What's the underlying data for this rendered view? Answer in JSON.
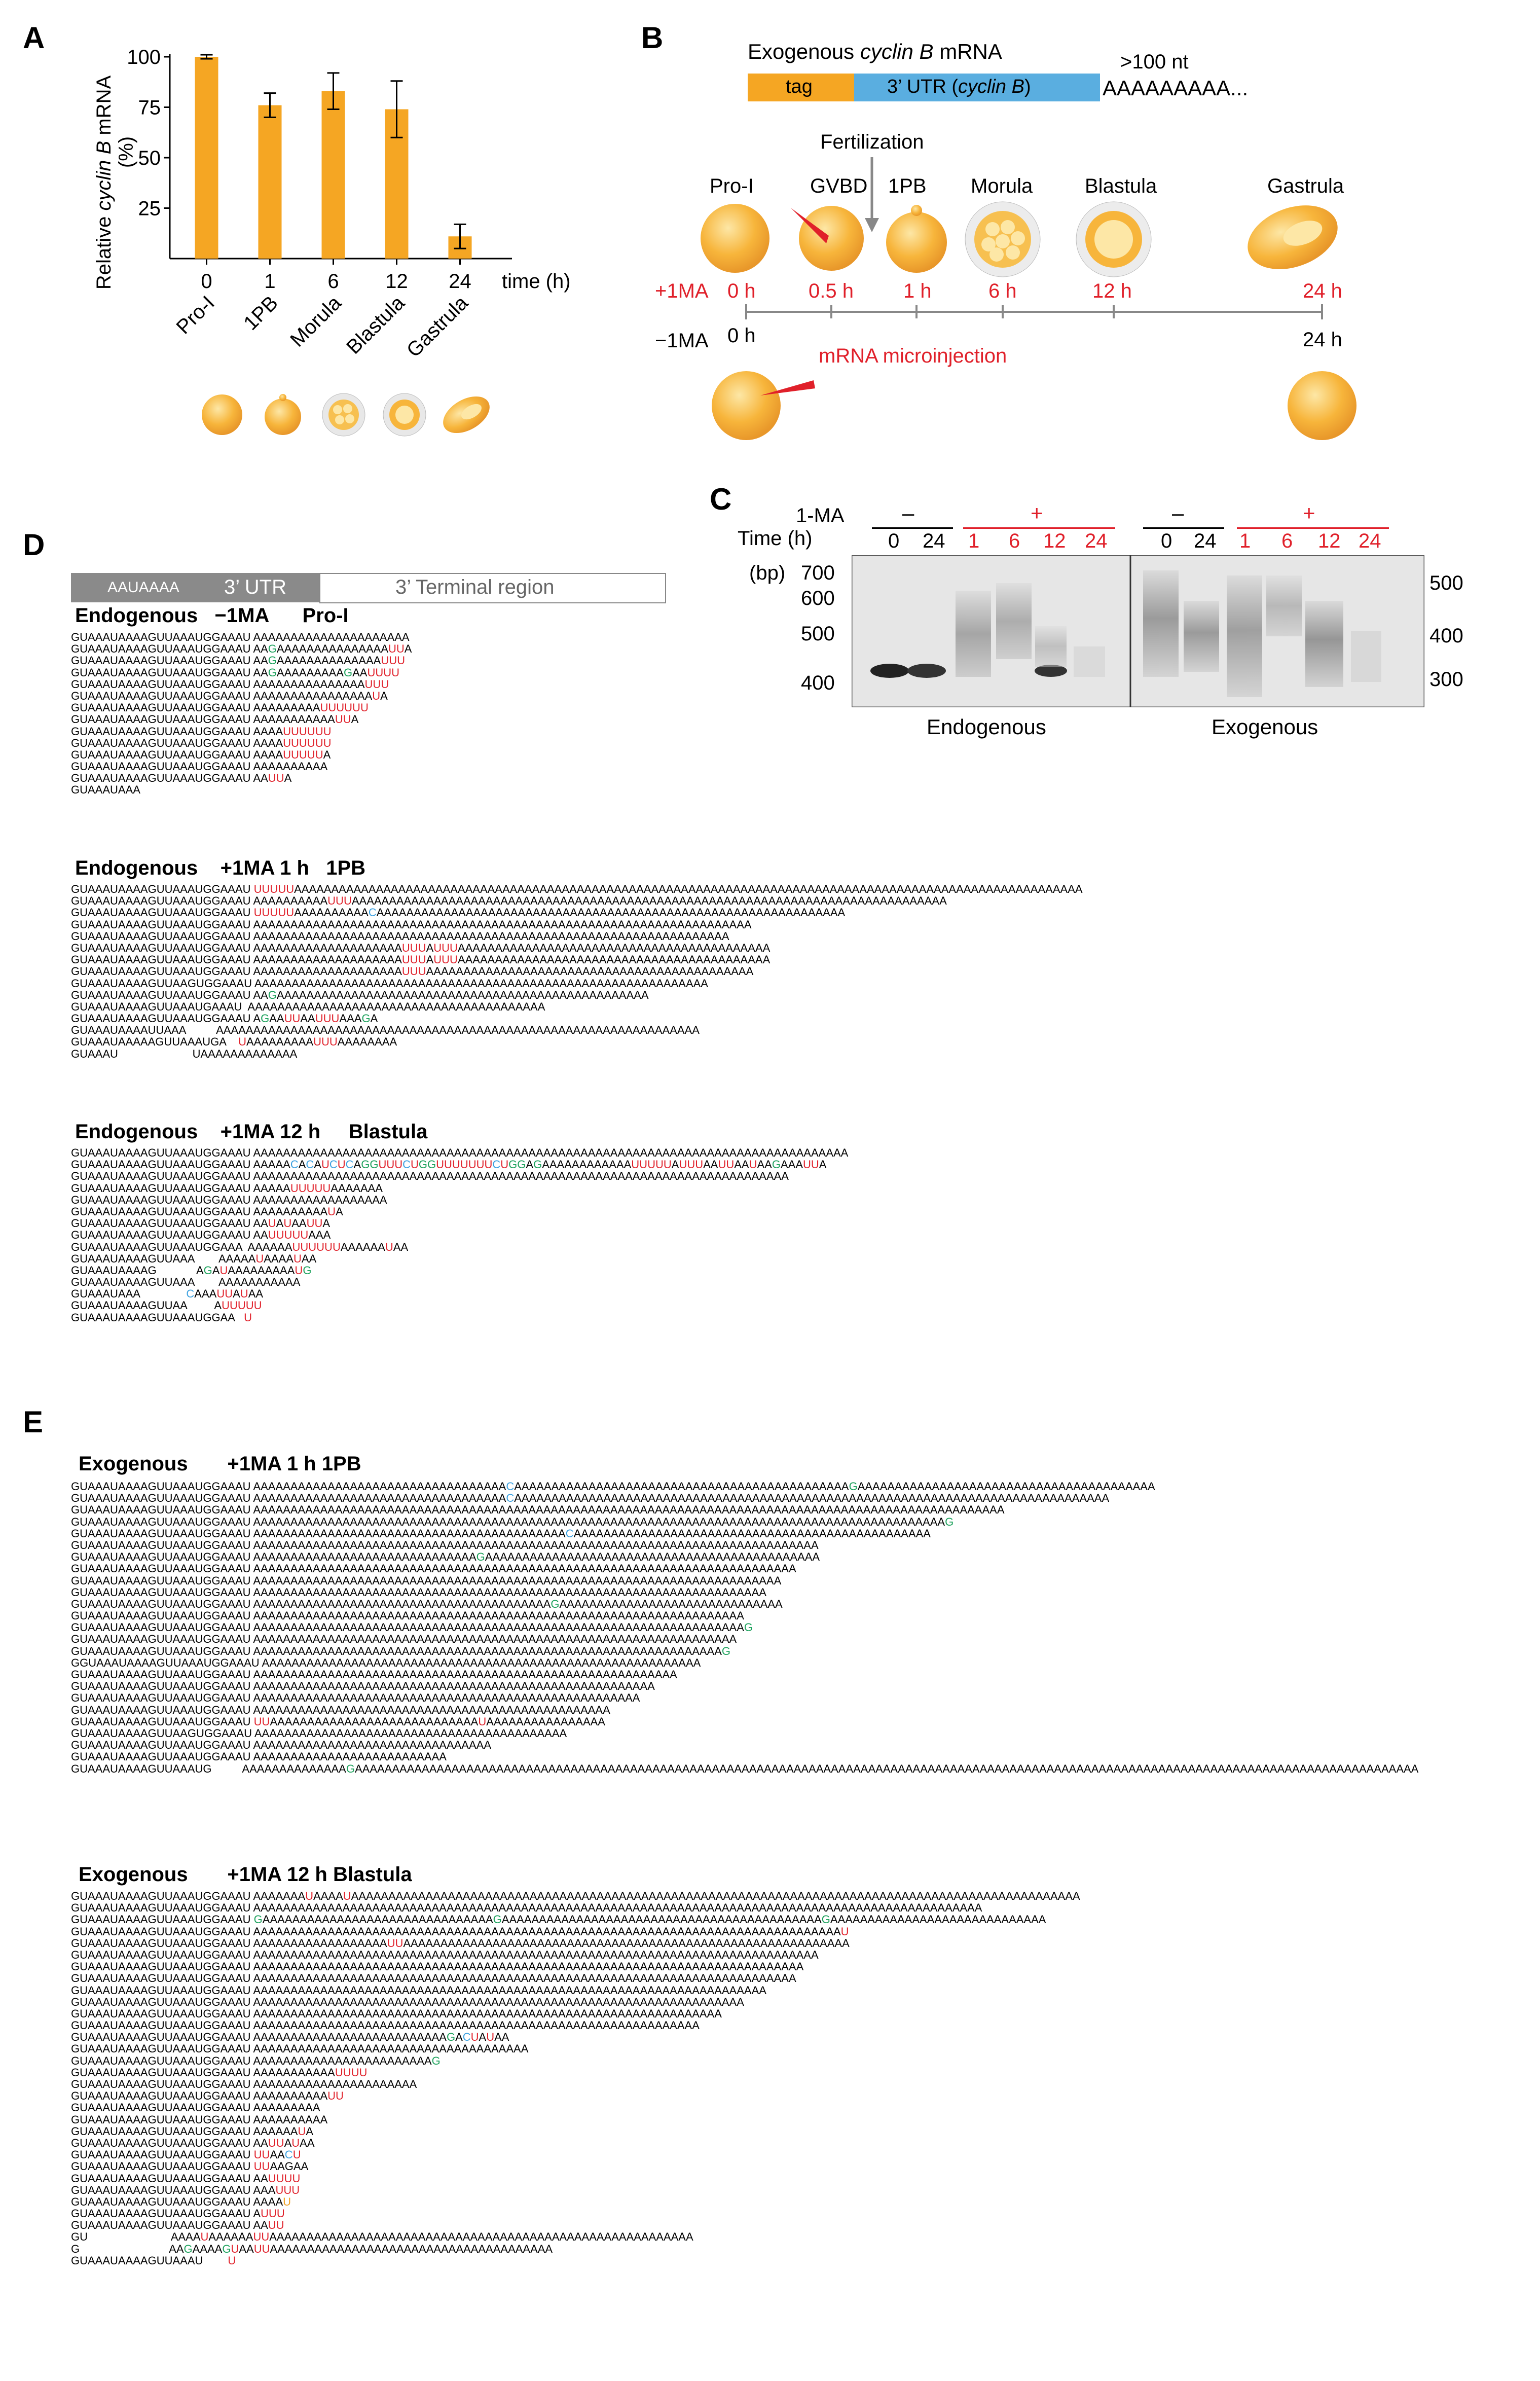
{
  "panels": {
    "A": "A",
    "B": "B",
    "C": "C",
    "D": "D",
    "E": "E"
  },
  "colors": {
    "bar": "#f5a623",
    "utr": "#5aaee0",
    "tag": "#f5a623",
    "red": "#e0202a",
    "green": "#1aa05a",
    "blue": "#3aa0e0",
    "gel_bg": "#e6e6e6",
    "band": "#222222"
  },
  "chart_data": {
    "type": "bar",
    "title": "",
    "ylabel": "Relative cyclin B mRNA (%)",
    "ylabel_parts": [
      "Relative ",
      "cyclin B",
      " mRNA"
    ],
    "ylabel_unit": "(%)",
    "xlabel": "time (h)",
    "categories": [
      "0",
      "1",
      "6",
      "12",
      "24"
    ],
    "stage_labels": [
      "Pro-I",
      "1PB",
      "Morula",
      "Blastula",
      "Gastrula"
    ],
    "values": [
      100,
      76,
      83,
      74,
      11
    ],
    "errors": [
      1,
      6,
      9,
      14,
      6
    ],
    "yticks": [
      "25",
      "50",
      "75",
      "100"
    ],
    "ytick_values": [
      25,
      50,
      75,
      100
    ],
    "ylim": [
      0,
      100
    ]
  },
  "panelB": {
    "title_prefix": "Exogenous ",
    "title_italic": "cyclin B",
    "title_suffix": " mRNA",
    "tag": "tag",
    "utr_prefix": "3’  UTR (",
    "utr_italic": "cyclin B",
    "utr_suffix": ")",
    "polya": "AAAAAAAAA...",
    "length": ">100 nt",
    "fertilization": "Fertilization",
    "stages": [
      "Pro-I",
      "GVBD",
      "1PB",
      "Morula",
      "Blastula",
      "Gastrula"
    ],
    "plus_label": "+1MA",
    "plus_times": [
      "0 h",
      "0.5 h",
      "1 h",
      "6 h",
      "12 h",
      "24 h"
    ],
    "minus_label": "−1MA",
    "minus_start": "0 h",
    "minus_end": "24 h",
    "injection": "mRNA microinjection"
  },
  "panelC": {
    "row_1ma": "1-MA",
    "row_time": "Time  (h)",
    "bp_unit": "(bp)",
    "left_markers": [
      "700",
      "600",
      "500",
      "400"
    ],
    "right_markers": [
      "500",
      "400",
      "300"
    ],
    "minus": "–",
    "plus": "+",
    "lanes_minus": [
      "0",
      "24"
    ],
    "lanes_plus": [
      "1",
      "6",
      "12",
      "24"
    ],
    "caption_left": "Endogenous",
    "caption_right": "Exogenous"
  },
  "panelD": {
    "legend_box1": "AAUAAAA",
    "legend_utr": "3’ UTR",
    "legend_terminal": "3’ Terminal region",
    "groups": [
      {
        "title": "Endogenous   −1MA      Pro-I",
        "lines": [
          "GUAAAUAAAAGUUAAAUGGAAAU AAAAAAAAAAAAAAAAAAAAA",
          "GUAAAUAAAAGUUAAAUGGAAAU AA{g:G}AAAAAAAAAAAAAAA{r:UU}A",
          "GUAAAUAAAAGUUAAAUGGAAAU AA{g:G}AAAAAAAAAAAAAA{r:UUU}",
          "GUAAAUAAAAGUUAAAUGGAAAU AA{g:G}AAAAAAAAA{g:G}AA{r:UUUU}",
          "GUAAAUAAAAGUUAAAUGGAAAU AAAAAAAAAAAAAAA{r:UUU}",
          "GUAAAUAAAAGUUAAAUGGAAAU AAAAAAAAAAAAAAAA{r:U}A",
          "GUAAAUAAAAGUUAAAUGGAAAU AAAAAAAAA{r:UUUUUU}",
          "GUAAAUAAAAGUUAAAUGGAAAU AAAAAAAAAAA{r:UU}A",
          "GUAAAUAAAAGUUAAAUGGAAAU AAAA{r:UUUUUU}",
          "GUAAAUAAAAGUUAAAUGGAAAU AAAA{r:UUUUUU}",
          "GUAAAUAAAAGUUAAAUGGAAAU AAAA{r:UUUUU}A",
          "GUAAAUAAAAGUUAAAUGGAAAU AAAAAAAAAA",
          "GUAAAUAAAAGUUAAAUGGAAAU AA{r:UU}A",
          "GUAAAUAAA"
        ]
      },
      {
        "title": "Endogenous    +1MA 1 h   1PB",
        "lines": [
          "GUAAAUAAAAGUUAAAUGGAAAU {r:UUUUU}AAAAAAAAAAAAAAAAAAAAAAAAAAAAAAAAAAAAAAAAAAAAAAAAAAAAAAAAAAAAAAAAAAAAAAAAAAAAAAAAAAAAAAAAAAAAAAAAAAAAAAAAAA",
          "GUAAAUAAAAGUUAAAUGGAAAU AAAAAAAAAA{r:UUU}AAAAAAAAAAAAAAAAAAAAAAAAAAAAAAAAAAAAAAAAAAAAAAAAAAAAAAAAAAAAAAAAAAAAAAAAAAAAAAAA",
          "GUAAAUAAAAGUUAAAUGGAAAU {r:UUUUU}AAAAAAAAAA{b:C}AAAAAAAAAAAAAAAAAAAAAAAAAAAAAAAAAAAAAAAAAAAAAAAAAAAAAAAAAAAAAAA",
          "GUAAAUAAAAGUUAAAUGGAAAU AAAAAAAAAAAAAAAAAAAAAAAAAAAAAAAAAAAAAAAAAAAAAAAAAAAAAAAAAAAAAAAAAAA",
          "GUAAAUAAAAGUUAAAUGGAAAU AAAAAAAAAAAAAAAAAAAAAAAAAAAAAAAAAAAAAAAAAAAAAAAAAAAAAAAAAAAAAAAA",
          "GUAAAUAAAAGUUAAAUGGAAAU AAAAAAAAAAAAAAAAAAAA{r:UUU}A{r:UUU}AAAAAAAAAAAAAAAAAAAAAAAAAAAAAAAAAAAAAAAAAA",
          "GUAAAUAAAAGUUAAAUGGAAAU AAAAAAAAAAAAAAAAAAAA{r:UUU}A{r:UUU}AAAAAAAAAAAAAAAAAAAAAAAAAAAAAAAAAAAAAAAAAA",
          "GUAAAUAAAAGUUAAAUGGAAAU AAAAAAAAAAAAAAAAAAAA{r:UUU}AAAAAAAAAAAAAAAAAAAAAAAAAAAAAAAAAAAAAAAAAAAA",
          "GUAAAUAAAAGUUAAGUGGAAAU AAAAAAAAAAAAAAAAAAAAAAAAAAAAAAAAAAAAAAAAAAAAAAAAAAAAAAAAAAAAA",
          "GUAAAUAAAAGUUAAAUGGAAAU AA{g:G}AAAAAAAAAAAAAAAAAAAAAAAAAAAAAAAAAAAAAAAAAAAAAAAAAA",
          "GUAAAUAAAAGUUAAAUGAAAU  AAAAAAAAAAAAAAAAAAAAAAAAAAAAAAAAAAAAAAAA",
          "GUAAAUAAAAGUUAAAUGGAAAU A{g:G}AA{r:UU}AA{r:UUU}AAA{g:G}A",
          "GUAAAUAAAAUUAAA          AAAAAAAAAAAAAAAAAAAAAAAAAAAAAAAAAAAAAAAAAAAAAAAAAAAAAAAAAAAAAAAAA",
          "GUAAAUAAAAAGUUAAAUGA    {r:U}AAAAAAAAA{r:UUU}AAAAAAAA",
          "GUAAAU                        UAAAAAAAAAAAAA"
        ]
      },
      {
        "title": "Endogenous    +1MA 12 h     Blastula",
        "lines": [
          "GUAAAUAAAAGUUAAAUGGAAAU AAAAAAAAAAAAAAAAAAAAAAAAAAAAAAAAAAAAAAAAAAAAAAAAAAAAAAAAAAAAAAAAAAAAAAAAAAAAAAAA",
          "GUAAAUAAAAGUUAAAUGGAAAU AAAAA{b:C}A{b:C}A{r:U}{b:C}{r:U}{b:C}A{g:G}{g:G}{r:UUU}{b:C}{r:U}{g:GG}{r:UUUUUUU}{b:C}{r:U}{g:GG}A{g:G}AAAAAAAAAAAA{r:UUUUU}A{r:UUU}AA{r:UU}AA{r:U}AA{g:G}AAA{r:UU}A",
          "GUAAAUAAAAGUUAAAUGGAAAU AAAAAAAAAAAAAAAAAAAAAAAAAAAAAAAAAAAAAAAAAAAAAAAAAAAAAAAAAAAAAAAAAAAAAAAA",
          "GUAAAUAAAAGUUAAAUGGAAAU AAAAA{r:UUUUU}AAAAAAA",
          "GUAAAUAAAAGUUAAAUGGAAAU AAAAAAAAAAAAAAAAAA",
          "GUAAAUAAAAGUUAAAUGGAAAU AAAAAAAAAA{r:U}A",
          "GUAAAUAAAAGUUAAAUGGAAAU AA{r:U}A{r:U}AA{r:UU}A",
          "GUAAAUAAAAGUUAAAUGGAAAU AA{r:UUUUU}AAA",
          "GUAAAUAAAAGUUAAAUGGAAA  AAAAAA{r:UUUUUU}AAAAAA{r:U}AA",
          "GUAAAUAAAAGUUAAA        AAAAA{r:U}AAAA{r:U}AA",
          "GUAAAUAAAAG             A{g:G}A{r:U}AAAAAAAAA{r:U}{g:G}",
          "GUAAAUAAAAGUUAAA        AAAAAAAAAAA",
          "GUAAAUAAA               {b:C}AAA{r:UU}A{r:U}AA",
          "GUAAAUAAAAGUUAA         A{r:UUUUU}",
          "GUAAAUAAAAGUUAAAUGGAA   {r:U}"
        ]
      }
    ]
  },
  "panelE": {
    "groups": [
      {
        "title": "Exogenous       +1MA 1 h 1PB",
        "lines": [
          "GUAAAUAAAAGUUAAAUGGAAAU AAAAAAAAAAAAAAAAAAAAAAAAAAAAAAAAAA{b:C}AAAAAAAAAAAAAAAAAAAAAAAAAAAAAAAAAAAAAAAAAAAAA{g:G}AAAAAAAAAAAAAAAAAAAAAAAAAAAAAAAAAAAAAAAA",
          "GUAAAUAAAAGUUAAAUGGAAAU AAAAAAAAAAAAAAAAAAAAAAAAAAAAAAAAAA{b:C}AAAAAAAAAAAAAAAAAAAAAAAAAAAAAAAAAAAAAAAAAAAAAAAAAAAAAAAAAAAAAAAAAAAAAAAAAAAAAAAA",
          "GUAAAUAAAAGUUAAAUGGAAAU AAAAAAAAAAAAAAAAAAAAAAAAAAAAAAAAAAAAAAAAAAAAAAAAAAAAAAAAAAAAAAAAAAAAAAAAAAAAAAAAAAAAAAAAAAAAAAAAAAAAA",
          "GUAAAUAAAAGUUAAAUGGAAAU AAAAAAAAAAAAAAAAAAAAAAAAAAAAAAAAAAAAAAAAAAAAAAAAAAAAAAAAAAAAAAAAAAAAAAAAAAAAAAAAAAAAAAAAAAAAA{g:G}",
          "GUAAAUAAAAGUUAAAUGGAAAU AAAAAAAAAAAAAAAAAAAAAAAAAAAAAAAAAAAAAAAAAA{b:C}AAAAAAAAAAAAAAAAAAAAAAAAAAAAAAAAAAAAAAAAAAAAAAAA",
          "GUAAAUAAAAGUUAAAUGGAAAU AAAAAAAAAAAAAAAAAAAAAAAAAAAAAAAAAAAAAAAAAAAAAAAAAAAAAAAAAAAAAAAAAAAAAAAAAAAA",
          "GUAAAUAAAAGUUAAAUGGAAAU AAAAAAAAAAAAAAAAAAAAAAAAAAAAAA{g:G}AAAAAAAAAAAAAAAAAAAAAAAAAAAAAAAAAAAAAAAAAAAAA",
          "GUAAAUAAAAGUUAAAUGGAAAU AAAAAAAAAAAAAAAAAAAAAAAAAAAAAAAAAAAAAAAAAAAAAAAAAAAAAAAAAAAAAAAAAAAAAAAAA",
          "GUAAAUAAAAGUUAAAUGGAAAU AAAAAAAAAAAAAAAAAAAAAAAAAAAAAAAAAAAAAAAAAAAAAAAAAAAAAAAAAAAAAAAAAAAAAAA",
          "GUAAAUAAAAGUUAAAUGGAAAU AAAAAAAAAAAAAAAAAAAAAAAAAAAAAAAAAAAAAAAAAAAAAAAAAAAAAAAAAAAAAAAAAAAAA",
          "GUAAAUAAAAGUUAAAUGGAAAU AAAAAAAAAAAAAAAAAAAAAAAAAAAAAAAAAAAAAAAA{g:G}AAAAAAAAAAAAAAAAAAAAAAAAAAAAAA",
          "GUAAAUAAAAGUUAAAUGGAAAU AAAAAAAAAAAAAAAAAAAAAAAAAAAAAAAAAAAAAAAAAAAAAAAAAAAAAAAAAAAAAAAAAA",
          "GUAAAUAAAAGUUAAAUGGAAAU AAAAAAAAAAAAAAAAAAAAAAAAAAAAAAAAAAAAAAAAAAAAAAAAAAAAAAAAAAAAAAAAAA{g:G}",
          "GUAAAUAAAAGUUAAAUGGAAAU AAAAAAAAAAAAAAAAAAAAAAAAAAAAAAAAAAAAAAAAAAAAAAAAAAAAAAAAAAAAAAAAA",
          "GUAAAUAAAAGUUAAAUGGAAAU AAAAAAAAAAAAAAAAAAAAAAAAAAAAAAAAAAAAAAAAAAAAAAAAAAAAAAAAAAAAAAA{g:G}",
          "GGUAAAUAAAAGUUAAAUGGAAAU AAAAAAAAAAAAAAAAAAAAAAAAAAAAAAAAAAAAAAAAAAAAAAAAAAAAAAAAAAA",
          "GUAAAUAAAAGUUAAAUGGAAAU AAAAAAAAAAAAAAAAAAAAAAAAAAAAAAAAAAAAAAAAAAAAAAAAAAAAAAAAA",
          "GUAAAUAAAAGUUAAAUGGAAAU AAAAAAAAAAAAAAAAAAAAAAAAAAAAAAAAAAAAAAAAAAAAAAAAAAAAAA",
          "GUAAAUAAAAGUUAAAUGGAAAU AAAAAAAAAAAAAAAAAAAAAAAAAAAAAAAAAAAAAAAAAAAAAAAAAAAA",
          "GUAAAUAAAAGUUAAAUGGAAAU AAAAAAAAAAAAAAAAAAAAAAAAAAAAAAAAAAAAAAAAAAAAAAAA",
          "GUAAAUAAAAGUUAAAUGGAAAU {r:UU}AAAAAAAAAAAAAAAAAAAAAAAAAAAA{r:U}AAAAAAAAAAAAAAAA",
          "GUAAAUAAAAGUUAAGUGGAAAU AAAAAAAAAAAAAAAAAAAAAAAAAAAAAAAAAAAAAAAAAA",
          "GUAAAUAAAAGUUAAAUGGAAAU AAAAAAAAAAAAAAAAAAAAAAAAAAAAAAAA",
          "GUAAAUAAAAGUUAAAUGGAAAU AAAAAAAAAAAAAAAAAAAAAAAAAA",
          "GUAAAUAAAAGUUAAAUG          AAAAAAAAAAAAAA{g:G}AAAAAAAAAAAAAAAAAAAAAAAAAAAAAAAAAAAAAAAAAAAAAAAAAAAAAAAAAAAAAAAAAAAAAAAAAAAAAAAAAAAAAAAAAAAAAAAAAAAAAAAAAAAAAAAAAAAAAAAAAAAAAAAAAAAAAAAAAAAAAAA"
        ]
      },
      {
        "title": "Exogenous       +1MA 12 h Blastula",
        "lines": [
          "GUAAAUAAAAGUUAAAUGGAAAU AAAAAAA{r:U}AAAA{r:U}AAAAAAAAAAAAAAAAAAAAAAAAAAAAAAAAAAAAAAAAAAAAAAAAAAAAAAAAAAAAAAAAAAAAAAAAAAAAAAAAAAAAAAAAAAAAAAAAAA",
          "GUAAAUAAAAGUUAAAUGGAAAU AAAAAAAAAAAAAAAAAAAAAAAAAAAAAAAAAAAAAAAAAAAAAAAAAAAAAAAAAAAAAAAAAAAAAAAAAAAAAAAAAAAAAAAAAAAAAAAAAA",
          "GUAAAUAAAAGUUAAAUGGAAAU {g:G}AAAAAAAAAAAAAAAAAAAAAAAAAAAAAAA{g:G}AAAAAAAAAAAAAAAAAAAAAAAAAAAAAAAAAAAAAAAAAAA{g:G}AAAAAAAAAAAAAAAAAAAAAAAAAAAAA",
          "GUAAAUAAAAGUUAAAUGGAAAU AAAAAAAAAAAAAAAAAAAAAAAAAAAAAAAAAAAAAAAAAAAAAAAAAAAAAAAAAAAAAAAAAAAAAAAAAAAAAAA{r:U}",
          "GUAAAUAAAAGUUAAAUGGAAAU AAAAAAAAAAAAAAAAAA{r:UU}AAAAAAAAAAAAAAAAAAAAAAAAAAAAAAAAAAAAAAAAAAAAAAAAAAAAAAAAAAAA",
          "GUAAAUAAAAGUUAAAUGGAAAU AAAAAAAAAAAAAAAAAAAAAAAAAAAAAAAAAAAAAAAAAAAAAAAAAAAAAAAAAAAAAAAAAAAAAAAAAAAA",
          "GUAAAUAAAAGUUAAAUGGAAAU AAAAAAAAAAAAAAAAAAAAAAAAAAAAAAAAAAAAAAAAAAAAAAAAAAAAAAAAAAAAAAAAAAAAAAAAAA",
          "GUAAAUAAAAGUUAAAUGGAAAU AAAAAAAAAAAAAAAAAAAAAAAAAAAAAAAAAAAAAAAAAAAAAAAAAAAAAAAAAAAAAAAAAAAAAAAAA",
          "GUAAAUAAAAGUUAAAUGGAAAU AAAAAAAAAAAAAAAAAAAAAAAAAAAAAAAAAAAAAAAAAAAAAAAAAAAAAAAAAAAAAAAAAAAAA",
          "GUAAAUAAAAGUUAAAUGGAAAU AAAAAAAAAAAAAAAAAAAAAAAAAAAAAAAAAAAAAAAAAAAAAAAAAAAAAAAAAAAAAAAAAA",
          "GUAAAUAAAAGUUAAAUGGAAAU AAAAAAAAAAAAAAAAAAAAAAAAAAAAAAAAAAAAAAAAAAAAAAAAAAAAAAAAAAAAAAA",
          "GUAAAUAAAAGUUAAAUGGAAAU AAAAAAAAAAAAAAAAAAAAAAAAAAAAAAAAAAAAAAAAAAAAAAAAAAAAAAAAAAAA",
          "GUAAAUAAAAGUUAAAUGGAAAU AAAAAAAAAAAAAAAAAAAAAAAAAA{g:G}A{b:C}{r:U}A{r:U}AA",
          "GUAAAUAAAAGUUAAAUGGAAAU AAAAAAAAAAAAAAAAAAAAAAAAAAAAAAAAAAAAA",
          "GUAAAUAAAAGUUAAAUGGAAAU AAAAAAAAAAAAAAAAAAAAAAAA{g:G}",
          "GUAAAUAAAAGUUAAAUGGAAAU AAAAAAAAAAA{r:UUUU}",
          "GUAAAUAAAAGUUAAAUGGAAAU AAAAAAAAAAAAAAAAAAAAAA",
          "GUAAAUAAAAGUUAAAUGGAAAU AAAAAAAAAA{r:UU}",
          "GUAAAUAAAAGUUAAAUGGAAAU AAAAAAAAA",
          "GUAAAUAAAAGUUAAAUGGAAAU AAAAAAAAAA",
          "GUAAAUAAAAGUUAAAUGGAAAU AAAAAA{r:U}A",
          "GUAAAUAAAAGUUAAAUGGAAAU AA{r:UU}A{r:U}AA",
          "GUAAAUAAAAGUUAAAUGGAAAU {r:UU}AA{b:C}{r:U}",
          "GUAAAUAAAAGUUAAAUGGAAAU {r:UU}AAGAA",
          "GUAAAUAAAAGUUAAAUGGAAAU AA{r:UUUU}",
          "GUAAAUAAAAGUUAAAUGGAAAU AAA{r:UUU}",
          "GUAAAUAAAAGUUAAAUGGAAAU AAAA{o:U}",
          "GUAAAUAAAAGUUAAAUGGAAAU A{r:UUU}",
          "GUAAAUAAAAGUUAAAUGGAAAU AA{r:UU}",
          "GU                           AAAA{r:U}AAAAAA{r:UU}AAAAAAAAAAAAAAAAAAAAAAAAAAAAAAAAAAAAAAAAAAAAAAAAAAAAAAAAA",
          "G                             AA{g:G}AAAA{g:G}{r:U}AA{r:UU}AAAAAAAAAAAAAAAAAAAAAAAAAAAAAAAAAAAAAA",
          "GUAAAUAAAAGUUAAAU        {r:U}"
        ]
      }
    ]
  }
}
